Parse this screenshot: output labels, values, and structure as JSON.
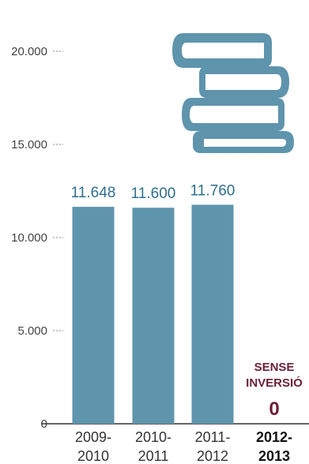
{
  "chart_data": {
    "type": "bar",
    "title": "",
    "xlabel": "",
    "ylabel": "",
    "ylim": [
      0,
      20000
    ],
    "yticks": [
      {
        "value": 0,
        "label": "0"
      },
      {
        "value": 5000,
        "label": "5.000"
      },
      {
        "value": 10000,
        "label": "10.000"
      },
      {
        "value": 15000,
        "label": "15.000"
      },
      {
        "value": 20000,
        "label": "20.000"
      }
    ],
    "categories": [
      {
        "line1": "2009-",
        "line2": "2010"
      },
      {
        "line1": "2010-",
        "line2": "2011"
      },
      {
        "line1": "2011-",
        "line2": "2012"
      },
      {
        "line1": "2012-",
        "line2": "2013"
      }
    ],
    "values": [
      11648,
      11600,
      11760,
      0
    ],
    "value_labels": [
      "11.648",
      "11.600",
      "11.760",
      "0"
    ],
    "annotation": {
      "line1": "SENSE",
      "line2": "INVERSIÓ"
    },
    "highlight_index": 3,
    "grid": false,
    "icon": "books-stack-icon",
    "colors": {
      "bar": "#5f94ad",
      "value_label": "#2f6f8c",
      "highlight": "#6b1f3a",
      "icon": "#5f94ad"
    }
  }
}
